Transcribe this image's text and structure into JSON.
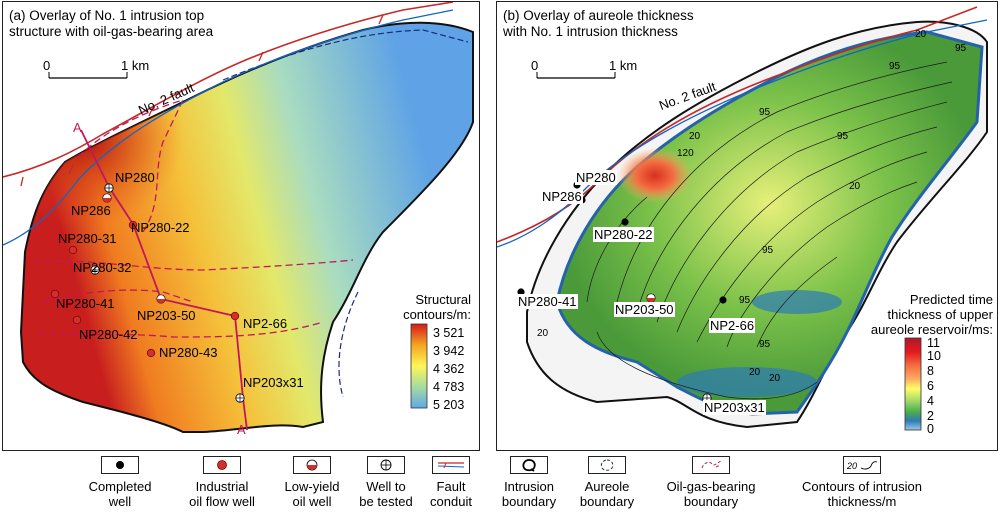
{
  "panel_a": {
    "title": "(a) Overlay of No. 1 intrusion top\nstructure with oil-gas-bearing area",
    "scale": {
      "zero": "0",
      "len": "1 km"
    },
    "fault_label": "No. 2 fault",
    "section_start": "A",
    "section_end": "A'",
    "wells": [
      {
        "name": "NP280",
        "type": "well-to-be-tested"
      },
      {
        "name": "NP286",
        "type": "low-yield"
      },
      {
        "name": "NP280-22",
        "type": "industrial"
      },
      {
        "name": "NP280-31",
        "type": "industrial"
      },
      {
        "name": "NP280-32",
        "type": "well-to-be-tested"
      },
      {
        "name": "NP280-41",
        "type": "industrial"
      },
      {
        "name": "NP280-42",
        "type": "industrial"
      },
      {
        "name": "NP280-43",
        "type": "industrial"
      },
      {
        "name": "NP203-50",
        "type": "low-yield"
      },
      {
        "name": "NP2-66",
        "type": "industrial"
      },
      {
        "name": "NP203x31",
        "type": "well-to-be-tested"
      }
    ],
    "colorbar": {
      "title": "Structural\ncontours/m:",
      "ticks": [
        "3 521",
        "3 942",
        "4 362",
        "4 783",
        "5 203"
      ],
      "colors": [
        "#d7191c",
        "#f4a520",
        "#fef65a",
        "#a6dba0",
        "#5fa8e8"
      ]
    }
  },
  "panel_b": {
    "title": "(b) Overlay of aureole thickness\nwith No. 1 intrusion thickness",
    "scale": {
      "zero": "0",
      "len": "1 km"
    },
    "fault_label": "No. 2 fault",
    "wells": [
      {
        "name": "NP280",
        "type": "completed"
      },
      {
        "name": "NP286",
        "type": "completed"
      },
      {
        "name": "NP280-22",
        "type": "completed"
      },
      {
        "name": "NP280-41",
        "type": "completed"
      },
      {
        "name": "NP203-50",
        "type": "low-yield"
      },
      {
        "name": "NP2-66",
        "type": "completed"
      },
      {
        "name": "NP203x31",
        "type": "well-to-be-tested"
      }
    ],
    "contour_labels": [
      "20",
      "95",
      "95",
      "95",
      "95",
      "20",
      "120",
      "95",
      "20",
      "20",
      "95",
      "20",
      "20",
      "95"
    ],
    "colorbar": {
      "title": "Predicted time\nthickness of upper\naureole reservoir/ms:",
      "ticks": [
        "11",
        "10",
        "8",
        "6",
        "4",
        "2",
        "0"
      ],
      "colors": [
        "#b2182b",
        "#e31a1c",
        "#f46d43",
        "#fdae61",
        "#ffff66",
        "#a6d96a",
        "#4daf4a",
        "#2c7bb6",
        "#9ecae1"
      ]
    }
  },
  "legend": [
    {
      "label": "Completed\nwell",
      "icon": "completed-well-icon"
    },
    {
      "label": "Industrial\noil flow well",
      "icon": "industrial-well-icon"
    },
    {
      "label": "Low-yield\noil well",
      "icon": "low-yield-well-icon"
    },
    {
      "label": "Well to\nbe tested",
      "icon": "test-well-icon"
    },
    {
      "label": "Fault\nconduit",
      "icon": "fault-icon"
    },
    {
      "label": "Intrusion\nboundary",
      "icon": "intrusion-boundary-icon"
    },
    {
      "label": "Aureole\nboundary",
      "icon": "aureole-boundary-icon"
    },
    {
      "label": "Oil-gas-bearing\nboundary",
      "icon": "oil-gas-boundary-icon"
    },
    {
      "label": "Contours of intrusion\nthickness/m",
      "icon": "contour-icon",
      "sample": "20"
    }
  ]
}
